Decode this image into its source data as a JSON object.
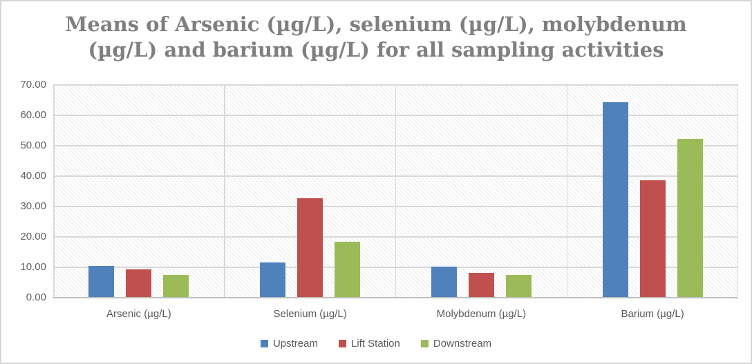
{
  "title": {
    "line1": "Means of Arsenic (µg/L), selenium (µg/L), molybdenum",
    "line2": "(µg/L) and barium (µg/L) for all sampling activities"
  },
  "colors": {
    "upstream": "#4F81BD",
    "lift_station": "#C0504D",
    "downstream": "#9BBB59",
    "title_text": "#7f7f7f",
    "axis_text": "#595959",
    "gridline": "#d9d9d9",
    "border": "#d6d6d6"
  },
  "chart_data": {
    "type": "bar",
    "title": "Means of Arsenic (µg/L), selenium (µg/L), molybdenum (µg/L) and barium (µg/L) for all sampling activities",
    "categories": [
      "Arsenic (µg/L)",
      "Selenium (µg/L)",
      "Molybdenum (µg/L)",
      "Barium (µg/L)"
    ],
    "series": [
      {
        "name": "Upstream",
        "color": "#4F81BD",
        "values": [
          10.4,
          11.7,
          10.3,
          64.4
        ]
      },
      {
        "name": "Lift Station",
        "color": "#C0504D",
        "values": [
          9.4,
          32.7,
          8.1,
          38.7
        ]
      },
      {
        "name": "Downstream",
        "color": "#9BBB59",
        "values": [
          7.4,
          18.3,
          7.4,
          52.3
        ]
      }
    ],
    "xlabel": "",
    "ylabel": "",
    "ylim": [
      0,
      70
    ],
    "ytick_step": 10,
    "ytick_labels_top_to_bottom": [
      "70.00",
      "60.00",
      "50.00",
      "40.00",
      "30.00",
      "20.00",
      "10.00",
      "0.00"
    ],
    "grid": true,
    "plot_background": "diagonal-hatch",
    "legend_position": "bottom"
  }
}
